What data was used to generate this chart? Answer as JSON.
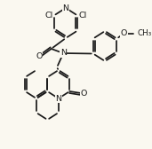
{
  "bg_color": "#faf8f0",
  "line_color": "#1a1a1a",
  "lw": 1.25,
  "fs": 6.8,
  "xlim": [
    0,
    171
  ],
  "ylim": [
    0,
    168
  ]
}
